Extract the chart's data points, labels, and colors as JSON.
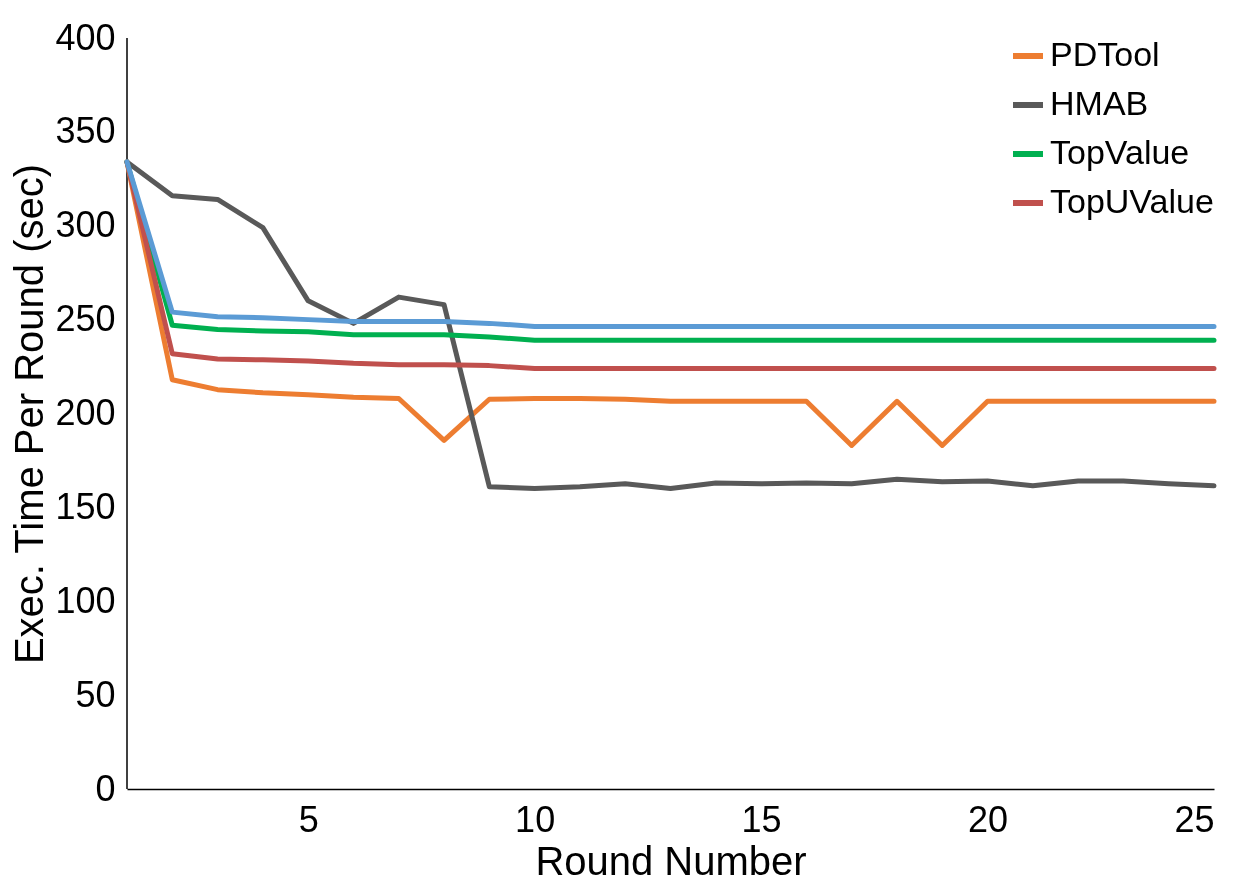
{
  "chart_data": {
    "type": "line",
    "xlabel": "Round Number",
    "ylabel": "Exec. Time Per Round (sec)",
    "x": [
      1,
      2,
      3,
      4,
      5,
      6,
      7,
      8,
      9,
      10,
      11,
      12,
      13,
      14,
      15,
      16,
      17,
      18,
      19,
      20,
      21,
      22,
      23,
      24,
      25
    ],
    "xlim": [
      1,
      25
    ],
    "xticks": [
      5,
      10,
      15,
      20,
      25
    ],
    "ylim": [
      0,
      400
    ],
    "yticks": [
      0,
      50,
      100,
      150,
      200,
      250,
      300,
      350,
      400
    ],
    "grid": false,
    "legend": "top right",
    "marker": "none",
    "line_style": "solid",
    "series": [
      {
        "name": "PDTool",
        "color": "#ed7d31",
        "values": [
          334,
          218,
          212.7,
          211,
          210,
          208.7,
          208,
          185.7,
          207.6,
          208,
          208,
          207.6,
          206.5,
          206.5,
          206.5,
          206.5,
          183,
          206.5,
          183,
          206.5,
          206.5,
          206.5,
          206.5,
          206.5,
          206.5
        ]
      },
      {
        "name": "HMAB",
        "color": "#595959",
        "values": [
          334,
          316,
          314,
          299,
          260,
          248,
          262,
          258,
          161,
          160,
          161,
          162.6,
          160,
          163,
          162.6,
          163,
          162.6,
          165,
          163.7,
          164,
          161.5,
          164,
          164,
          162.6,
          161.5
        ]
      },
      {
        "name": "TopValue",
        "color": "#00b050",
        "values": [
          334,
          247,
          244.7,
          244,
          243.6,
          242,
          242,
          242,
          240.8,
          239,
          239,
          239,
          239,
          239,
          239,
          239,
          239,
          239,
          239,
          239,
          239,
          239,
          239,
          239,
          239
        ]
      },
      {
        "name": "TopUValue",
        "color": "#c0504d",
        "values": [
          334,
          231.8,
          229,
          228.6,
          228,
          226.7,
          226,
          226,
          225.5,
          224,
          224,
          224,
          224,
          224,
          224,
          224,
          224,
          224,
          224,
          224,
          224,
          224,
          224,
          224,
          224
        ]
      },
      {
        "color": "#5b9bd5",
        "values": [
          334,
          254,
          251.5,
          251,
          250,
          249,
          249,
          249,
          248,
          246.4,
          246.4,
          246.4,
          246.4,
          246.4,
          246.4,
          246.4,
          246.4,
          246.4,
          246.4,
          246.4,
          246.4,
          246.4,
          246.4,
          246.4,
          246.4
        ]
      }
    ]
  }
}
